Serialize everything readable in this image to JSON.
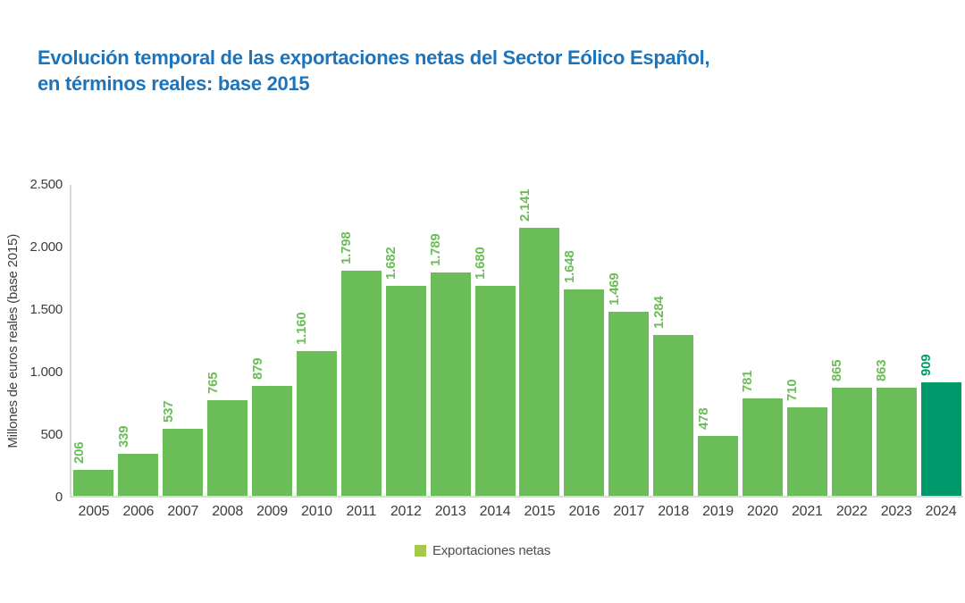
{
  "title": {
    "line1": "Evolución temporal de las exportaciones netas del Sector Eólico Español,",
    "line2": "en términos reales: base 2015"
  },
  "colors": {
    "title_blue": "#1e74bb",
    "bar": "#6bbd58",
    "highlight": "#00996b",
    "legend_swatch": "#a5c94b",
    "axis_line": "#d9d9d9",
    "tick_text": "#3d3d3d"
  },
  "legend": {
    "label": "Exportaciones netas",
    "position": "bottom-center"
  },
  "chart_data": {
    "type": "bar",
    "title": "Evolución temporal de las exportaciones netas del Sector Eólico Español, en términos reales: base 2015",
    "xlabel": "",
    "ylabel": "Millones de euros reales (base 2015)",
    "categories": [
      "2005",
      "2006",
      "2007",
      "2008",
      "2009",
      "2010",
      "2011",
      "2012",
      "2013",
      "2014",
      "2015",
      "2016",
      "2017",
      "2018",
      "2019",
      "2020",
      "2021",
      "2022",
      "2023",
      "2024"
    ],
    "values": [
      206,
      339,
      537,
      765,
      879,
      1160,
      1798,
      1682,
      1789,
      1680,
      2141,
      1648,
      1469,
      1284,
      478,
      781,
      710,
      865,
      863,
      909
    ],
    "value_labels": [
      "206",
      "339",
      "537",
      "765",
      "879",
      "1.160",
      "1.798",
      "1.682",
      "1.789",
      "1.680",
      "2.141",
      "1.648",
      "1.469",
      "1.284",
      "478",
      "781",
      "710",
      "865",
      "863",
      "909"
    ],
    "ylim": [
      0,
      2500
    ],
    "yticks": [
      {
        "value": 0,
        "label": "0"
      },
      {
        "value": 500,
        "label": "500"
      },
      {
        "value": 1000,
        "label": "1.000"
      },
      {
        "value": 1500,
        "label": "1.500"
      },
      {
        "value": 2000,
        "label": "2.000"
      },
      {
        "value": 2500,
        "label": "2.500"
      }
    ],
    "grid": false,
    "legend_entries": [
      "Exportaciones netas"
    ],
    "legend_position": "bottom-center",
    "highlight_category": "2024"
  }
}
